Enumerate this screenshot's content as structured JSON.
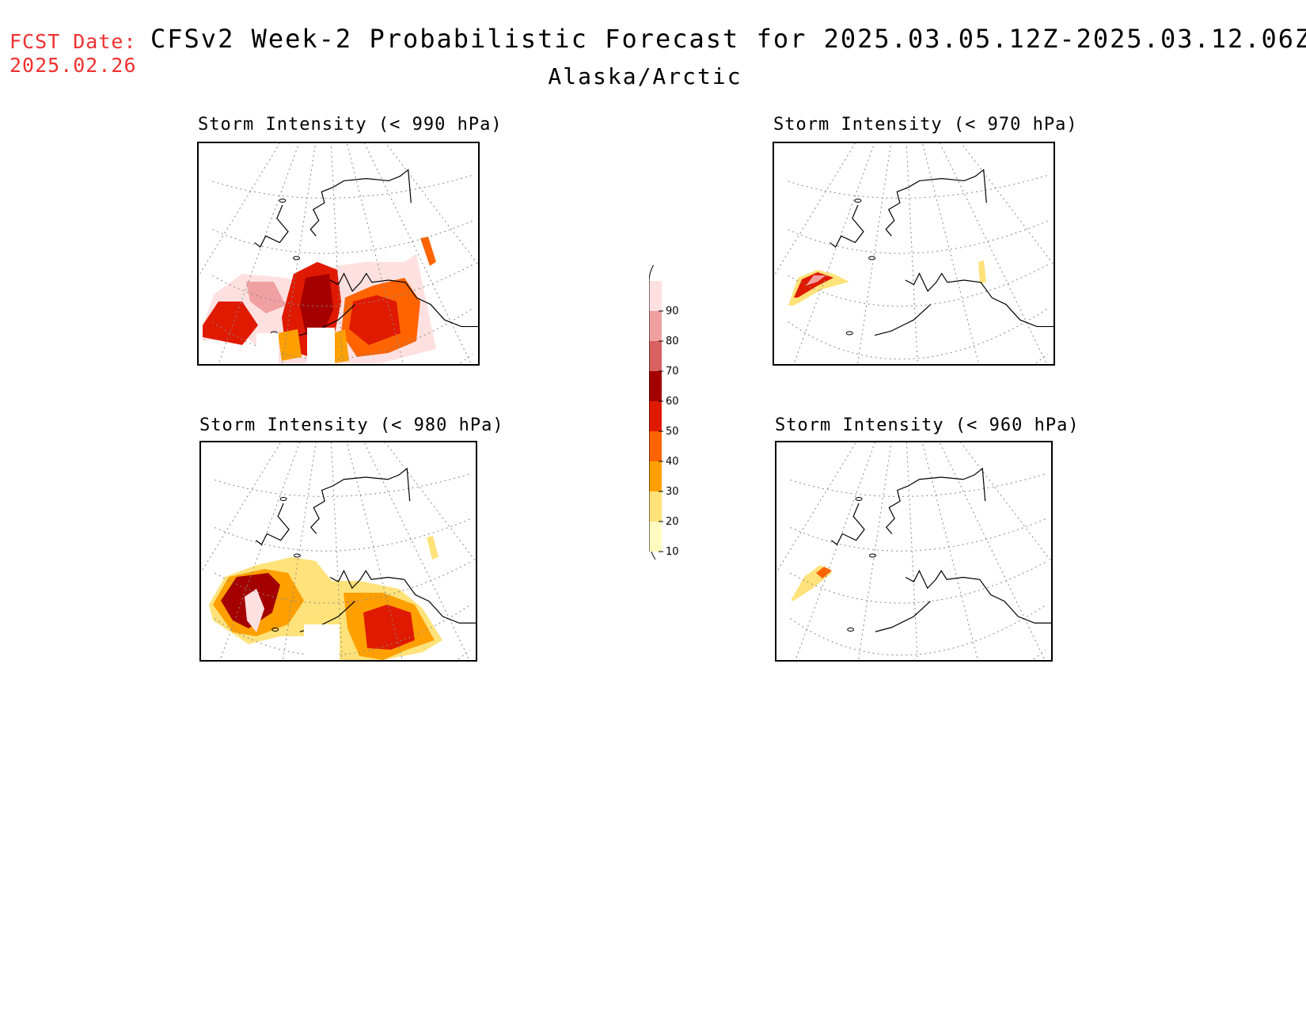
{
  "header": {
    "fcst_label": "FCST Date:",
    "fcst_date": "2025.02.26",
    "title": "CFSv2 Week-2 Probabilistic Forecast for 2025.03.05.12Z-2025.03.12.06Z",
    "region": "Alaska/Arctic"
  },
  "panels": [
    {
      "id": "p990",
      "title": "Storm Intensity (< 990 hPa)",
      "coverage": "extensive"
    },
    {
      "id": "p970",
      "title": "Storm Intensity (< 970 hPa)",
      "coverage": "small"
    },
    {
      "id": "p980",
      "title": "Storm Intensity (< 980 hPa)",
      "coverage": "moderate"
    },
    {
      "id": "p960",
      "title": "Storm Intensity (< 960 hPa)",
      "coverage": "minimal"
    }
  ],
  "colorbar": {
    "levels": [
      "10",
      "20",
      "30",
      "40",
      "50",
      "60",
      "70",
      "80",
      "90"
    ],
    "colors": [
      "#fffabf",
      "#ffe27a",
      "#ffa000",
      "#ff6400",
      "#e01a00",
      "#a50000",
      "#d86060",
      "#f0a0a0",
      "#ffe0e0"
    ]
  }
}
